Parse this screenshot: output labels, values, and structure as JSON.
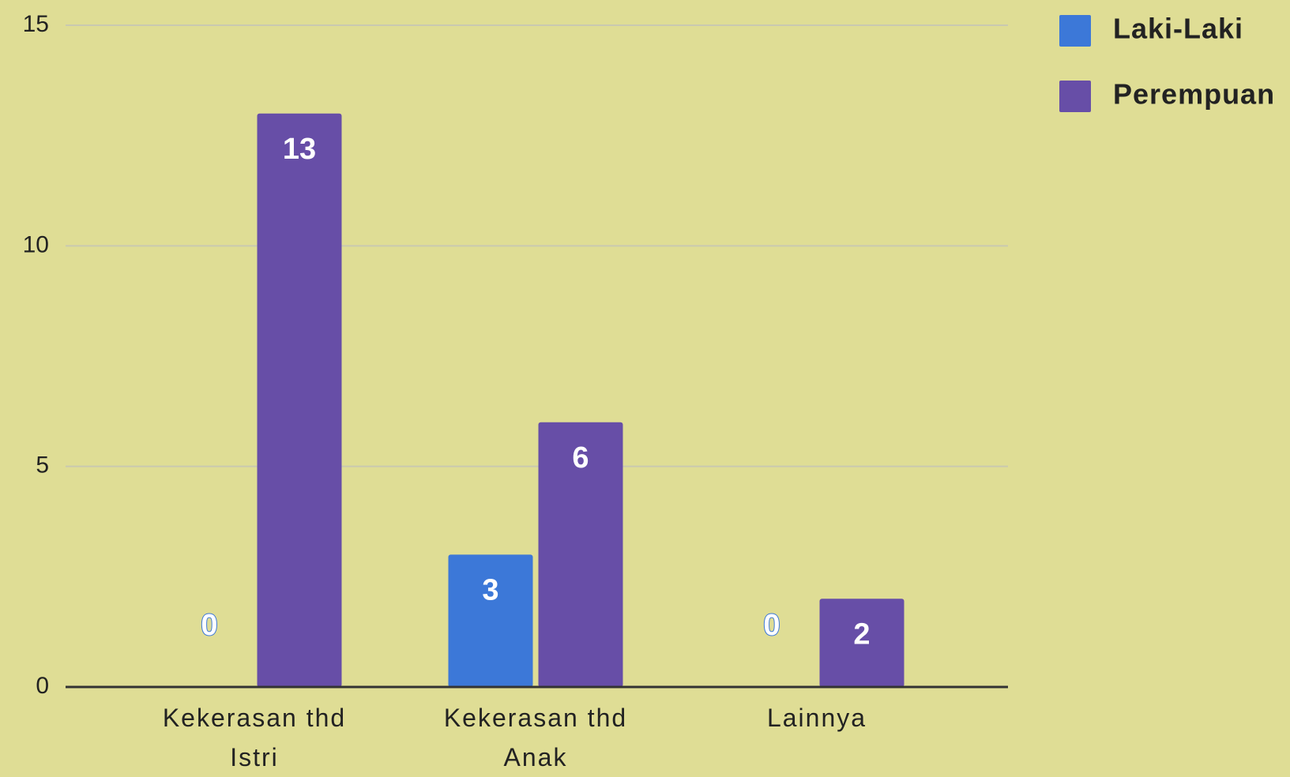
{
  "chart_data": {
    "type": "bar",
    "categories": [
      "Kekerasan thd Istri",
      "Kekerasan thd Anak",
      "Lainnya"
    ],
    "series": [
      {
        "name": "Laki-Laki",
        "color": "#3c78d8",
        "values": [
          0,
          3,
          0
        ]
      },
      {
        "name": "Perempuan",
        "color": "#674ea7",
        "values": [
          13,
          6,
          2
        ]
      }
    ],
    "ylim": [
      0,
      15
    ],
    "yticks": [
      0,
      5,
      10,
      15
    ],
    "grid": true,
    "legend": "right"
  }
}
